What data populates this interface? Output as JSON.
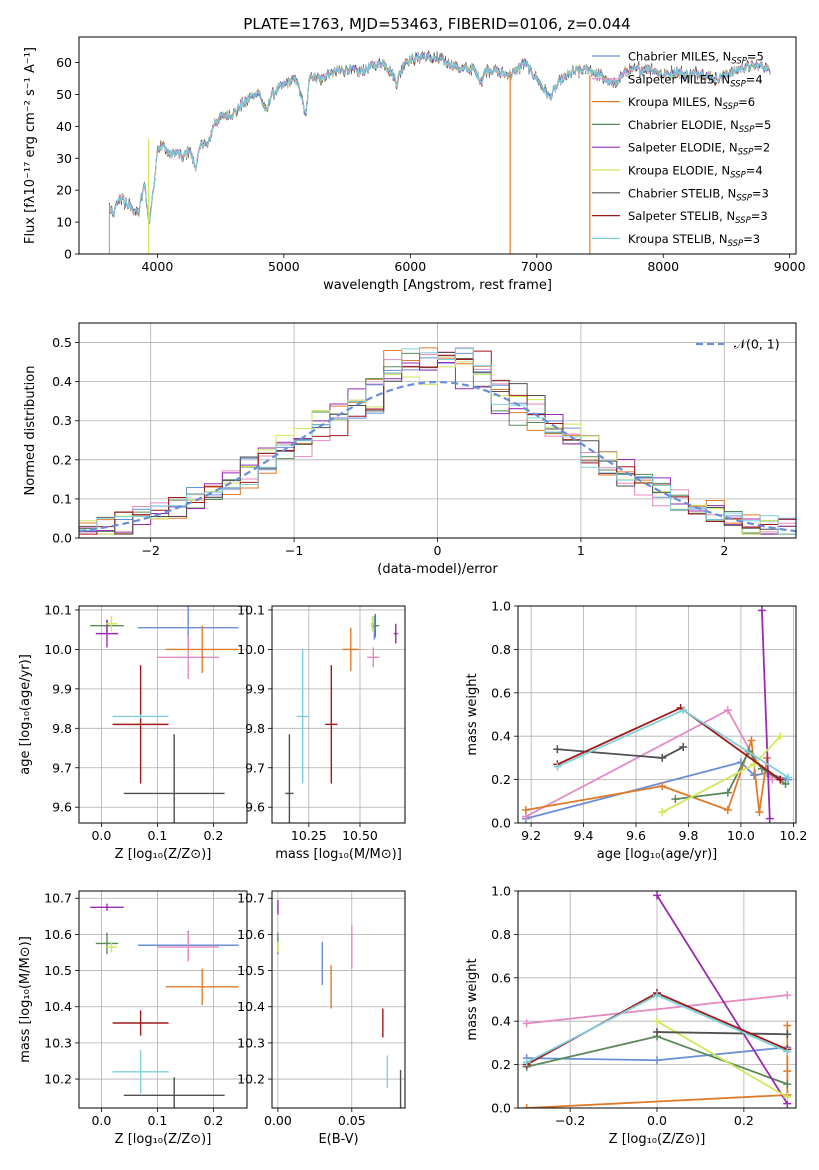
{
  "title": "PLATE=1763, MJD=53463, FIBERID=0106, z=0.044",
  "colors": {
    "chabrier_miles": "#6a8fd6",
    "salpeter_miles": "#e58ac2",
    "kroupa_miles": "#e07b2a",
    "chabrier_elodie": "#5a8a5a",
    "salpeter_elodie": "#9a2bb0",
    "kroupa_elodie": "#cfe85a",
    "chabrier_stelib": "#505050",
    "salpeter_stelib": "#a01818",
    "kroupa_stelib": "#80d0dc",
    "normal": "#6a8fd6"
  },
  "chart_data": [
    {
      "id": "spectrum",
      "type": "line",
      "xlabel": "wavelength [Angstrom, rest frame]",
      "ylabel": "Flux [fλ10⁻¹⁷ erg cm⁻² s⁻¹ A⁻¹]",
      "xlim": [
        3380,
        9050
      ],
      "ylim": [
        0,
        68
      ],
      "xticks": [
        4000,
        5000,
        6000,
        7000,
        8000,
        9000
      ],
      "yticks": [
        0,
        10,
        20,
        30,
        40,
        50,
        60
      ],
      "legend_position": "top-right",
      "legend": [
        {
          "main": "Chabrier MILES, N",
          "sub": "SSP",
          "tail": "=5",
          "color": "chabrier_miles"
        },
        {
          "main": "Salpeter MILES, N",
          "sub": "SSP",
          "tail": "=4",
          "color": "salpeter_miles"
        },
        {
          "main": "Kroupa MILES, N",
          "sub": "SSP",
          "tail": "=6",
          "color": "kroupa_miles"
        },
        {
          "main": "Chabrier ELODIE, N",
          "sub": "SSP",
          "tail": "=5",
          "color": "chabrier_elodie"
        },
        {
          "main": "Salpeter ELODIE, N",
          "sub": "SSP",
          "tail": "=2",
          "color": "salpeter_elodie"
        },
        {
          "main": "Kroupa ELODIE, N",
          "sub": "SSP",
          "tail": "=4",
          "color": "kroupa_elodie"
        },
        {
          "main": "Chabrier STELIB, N",
          "sub": "SSP",
          "tail": "=3",
          "color": "chabrier_stelib"
        },
        {
          "main": "Salpeter STELIB, N",
          "sub": "SSP",
          "tail": "=3",
          "color": "salpeter_stelib"
        },
        {
          "main": "Kroupa STELIB, N",
          "sub": "SSP",
          "tail": "=3",
          "color": "kroupa_stelib"
        }
      ],
      "data_x": [
        3620,
        3650,
        3700,
        3750,
        3800,
        3850,
        3900,
        3933,
        3968,
        4000,
        4050,
        4100,
        4150,
        4200,
        4250,
        4300,
        4350,
        4400,
        4450,
        4500,
        4600,
        4700,
        4800,
        4861,
        4900,
        5000,
        5100,
        5175,
        5200,
        5300,
        5400,
        5500,
        5600,
        5700,
        5800,
        5893,
        5950,
        6000,
        6100,
        6200,
        6300,
        6400,
        6500,
        6563,
        6600,
        6700,
        6800,
        6900,
        7000,
        7100,
        7200,
        7300,
        7400,
        7500,
        7600,
        7700,
        7800,
        7900,
        8000,
        8100,
        8200,
        8300,
        8400,
        8500,
        8600,
        8700,
        8800,
        8850
      ],
      "data_y": [
        15,
        12,
        18,
        16,
        14,
        13,
        22,
        9,
        20,
        33,
        34,
        31,
        32,
        30,
        33,
        27,
        35,
        34,
        41,
        43,
        44,
        48,
        51,
        44,
        50,
        53,
        55,
        43,
        56,
        55,
        57,
        58,
        57,
        59,
        60,
        54,
        60,
        61,
        62,
        61,
        60,
        58,
        58,
        54,
        58,
        57,
        56,
        60,
        55,
        49,
        55,
        57,
        58,
        56,
        53,
        57,
        58,
        58,
        56,
        57,
        56,
        57,
        55,
        56,
        58,
        59,
        59,
        57
      ],
      "dropouts": [
        {
          "x": 3930,
          "y1": 36,
          "y2": 0,
          "color": "kroupa_elodie"
        },
        {
          "x": 6790,
          "y1": 57,
          "y2": 0,
          "color": "kroupa_miles"
        },
        {
          "x": 7420,
          "y1": 56,
          "y2": 0,
          "color": "kroupa_miles"
        }
      ]
    },
    {
      "id": "residuals",
      "type": "histogram",
      "xlabel": "(data-model)/error",
      "ylabel": "Normed distribution",
      "xlim": [
        -2.5,
        2.5
      ],
      "ylim": [
        0,
        0.55
      ],
      "xticks": [
        -2,
        -1,
        0,
        1,
        2
      ],
      "yticks": [
        0,
        0.1,
        0.2,
        0.3,
        0.4,
        0.5
      ],
      "grid": true,
      "bin_width": 0.125,
      "legend_position": "top-right",
      "legend": "𝒩(0, 1)",
      "series_colors": [
        "chabrier_miles",
        "salpeter_miles",
        "kroupa_miles",
        "chabrier_elodie",
        "salpeter_elodie",
        "kroupa_elodie",
        "chabrier_stelib",
        "salpeter_stelib",
        "kroupa_stelib"
      ]
    },
    {
      "id": "age_z",
      "type": "errorbar",
      "xlabel": "Z [log₁₀(Z/Z⊙)]",
      "ylabel": "age  [log₁₀(age/yr)]",
      "xlim": [
        -0.04,
        0.26
      ],
      "ylim": [
        9.56,
        10.11
      ],
      "xticks": [
        0.0,
        0.1,
        0.2
      ],
      "yticks": [
        9.6,
        9.7,
        9.8,
        9.9,
        10.0,
        10.1
      ],
      "grid": true,
      "points": [
        {
          "x": 0.01,
          "y": 10.06,
          "xe": 0.03,
          "ye": 0.015,
          "color": "chabrier_elodie"
        },
        {
          "x": 0.01,
          "y": 10.04,
          "xe": 0.02,
          "ye": 0.035,
          "color": "salpeter_elodie"
        },
        {
          "x": 0.018,
          "y": 10.065,
          "xe": 0.01,
          "ye": 0.02,
          "color": "kroupa_elodie"
        },
        {
          "x": 0.155,
          "y": 10.055,
          "xe": 0.09,
          "ye": 0.06,
          "color": "chabrier_miles"
        },
        {
          "x": 0.155,
          "y": 9.98,
          "xe": 0.055,
          "ye": 0.055,
          "color": "salpeter_miles"
        },
        {
          "x": 0.18,
          "y": 10.0,
          "xe": 0.065,
          "ye": 0.06,
          "color": "kroupa_miles"
        },
        {
          "x": 0.07,
          "y": 9.81,
          "xe": 0.05,
          "ye": 0.15,
          "color": "salpeter_stelib"
        },
        {
          "x": 0.07,
          "y": 9.83,
          "xe": 0.05,
          "ye": 0.005,
          "color": "kroupa_stelib"
        },
        {
          "x": 0.13,
          "y": 9.635,
          "xe": 0.09,
          "ye": 0.15,
          "color": "chabrier_stelib"
        }
      ]
    },
    {
      "id": "age_mass",
      "type": "errorbar",
      "xlabel": "mass [log₁₀(M/M⊙)]",
      "ylabel": "",
      "xlim": [
        10.07,
        10.72
      ],
      "ylim": [
        9.56,
        10.11
      ],
      "xticks": [
        10.25,
        10.5
      ],
      "xticklabels": [
        "10.25",
        "10.50"
      ],
      "yticks": [
        9.6,
        9.7,
        9.8,
        9.9,
        10.0,
        10.1
      ],
      "grid": true,
      "points": [
        {
          "x": 10.575,
          "y": 10.06,
          "xe": 0.02,
          "ye": 0.03,
          "color": "chabrier_elodie"
        },
        {
          "x": 10.675,
          "y": 10.04,
          "xe": 0.01,
          "ye": 0.025,
          "color": "salpeter_elodie"
        },
        {
          "x": 10.56,
          "y": 10.065,
          "xe": 0.01,
          "ye": 0.02,
          "color": "kroupa_elodie"
        },
        {
          "x": 10.57,
          "y": 10.055,
          "xe": 0.005,
          "ye": 0.03,
          "color": "chabrier_miles"
        },
        {
          "x": 10.565,
          "y": 9.98,
          "xe": 0.03,
          "ye": 0.025,
          "color": "salpeter_miles"
        },
        {
          "x": 10.455,
          "y": 10.0,
          "xe": 0.04,
          "ye": 0.055,
          "color": "kroupa_miles"
        },
        {
          "x": 10.36,
          "y": 9.81,
          "xe": 0.03,
          "ye": 0.15,
          "color": "salpeter_stelib"
        },
        {
          "x": 10.22,
          "y": 9.83,
          "xe": 0.03,
          "ye": 0.17,
          "color": "kroupa_stelib"
        },
        {
          "x": 10.155,
          "y": 9.635,
          "xe": 0.02,
          "ye": 0.15,
          "color": "chabrier_stelib"
        }
      ]
    },
    {
      "id": "weight_age",
      "type": "line",
      "xlabel": "age  [log₁₀(age/yr)]",
      "ylabel": "mass weight",
      "xlim": [
        9.15,
        10.21
      ],
      "ylim": [
        0,
        1.0
      ],
      "xticks": [
        9.2,
        9.4,
        9.6,
        9.8,
        10.0,
        10.2
      ],
      "yticks": [
        0,
        0.2,
        0.4,
        0.6,
        0.8,
        1.0
      ],
      "grid": true,
      "series": [
        {
          "color": "chabrier_miles",
          "x": [
            9.18,
            10.0,
            10.05,
            10.1,
            10.18
          ],
          "y": [
            0.02,
            0.28,
            0.22,
            0.23,
            0.2
          ]
        },
        {
          "color": "salpeter_miles",
          "x": [
            9.18,
            9.95,
            10.05,
            10.12
          ],
          "y": [
            0.03,
            0.52,
            0.3,
            0.2
          ]
        },
        {
          "color": "kroupa_miles",
          "x": [
            9.18,
            9.7,
            9.95,
            10.04,
            10.07,
            10.1
          ],
          "y": [
            0.06,
            0.17,
            0.06,
            0.38,
            0.05,
            0.3
          ]
        },
        {
          "color": "chabrier_elodie",
          "x": [
            9.75,
            9.95,
            10.03,
            10.08,
            10.17
          ],
          "y": [
            0.11,
            0.14,
            0.33,
            0.25,
            0.18
          ]
        },
        {
          "color": "salpeter_elodie",
          "x": [
            10.08,
            10.11
          ],
          "y": [
            0.98,
            0.02
          ]
        },
        {
          "color": "kroupa_elodie",
          "x": [
            9.7,
            10.05,
            10.15
          ],
          "y": [
            0.05,
            0.27,
            0.4
          ]
        },
        {
          "color": "chabrier_stelib",
          "x": [
            9.3,
            9.7,
            9.78
          ],
          "y": [
            0.34,
            0.3,
            0.35
          ]
        },
        {
          "color": "salpeter_stelib",
          "x": [
            9.3,
            9.77,
            10.15
          ],
          "y": [
            0.27,
            0.53,
            0.2
          ]
        },
        {
          "color": "kroupa_stelib",
          "x": [
            9.3,
            9.78,
            10.18
          ],
          "y": [
            0.26,
            0.52,
            0.21
          ]
        }
      ]
    },
    {
      "id": "mass_z",
      "type": "errorbar",
      "xlabel": "Z [log₁₀(Z/Z⊙)]",
      "ylabel": "mass [log₁₀(M/M⊙)]",
      "xlim": [
        -0.04,
        0.26
      ],
      "ylim": [
        10.12,
        10.72
      ],
      "xticks": [
        0.0,
        0.1,
        0.2
      ],
      "yticks": [
        10.2,
        10.3,
        10.4,
        10.5,
        10.6,
        10.7
      ],
      "grid": true,
      "points": [
        {
          "x": 0.01,
          "y": 10.675,
          "xe": 0.03,
          "ye": 0.01,
          "color": "salpeter_elodie"
        },
        {
          "x": 0.01,
          "y": 10.575,
          "xe": 0.02,
          "ye": 0.03,
          "color": "chabrier_elodie"
        },
        {
          "x": 0.018,
          "y": 10.565,
          "xe": 0.01,
          "ye": 0.015,
          "color": "kroupa_elodie"
        },
        {
          "x": 0.155,
          "y": 10.57,
          "xe": 0.09,
          "ye": 0.04,
          "color": "chabrier_miles"
        },
        {
          "x": 0.155,
          "y": 10.565,
          "xe": 0.055,
          "ye": 0.04,
          "color": "salpeter_miles"
        },
        {
          "x": 0.18,
          "y": 10.455,
          "xe": 0.065,
          "ye": 0.05,
          "color": "kroupa_miles"
        },
        {
          "x": 0.07,
          "y": 10.355,
          "xe": 0.05,
          "ye": 0.035,
          "color": "salpeter_stelib"
        },
        {
          "x": 0.07,
          "y": 10.22,
          "xe": 0.05,
          "ye": 0.06,
          "color": "kroupa_stelib"
        },
        {
          "x": 0.13,
          "y": 10.155,
          "xe": 0.09,
          "ye": 0.05,
          "color": "chabrier_stelib"
        }
      ]
    },
    {
      "id": "mass_ebv",
      "type": "errorbar",
      "xlabel": "E(B-V)",
      "ylabel": "",
      "xlim": [
        -0.004,
        0.086
      ],
      "ylim": [
        10.12,
        10.72
      ],
      "xticks": [
        0.0,
        0.05
      ],
      "xticklabels": [
        "0.00",
        "0.05"
      ],
      "yticks": [
        10.2,
        10.3,
        10.4,
        10.5,
        10.6,
        10.7
      ],
      "grid": true,
      "points": [
        {
          "x": 0.0,
          "y": 10.675,
          "xe": 0,
          "ye": 0.02,
          "color": "salpeter_elodie"
        },
        {
          "x": 0.0,
          "y": 10.575,
          "xe": 0,
          "ye": 0.03,
          "color": "chabrier_elodie"
        },
        {
          "x": 0.0,
          "y": 10.565,
          "xe": 0,
          "ye": 0.015,
          "color": "kroupa_elodie"
        },
        {
          "x": 0.03,
          "y": 10.52,
          "xe": 0,
          "ye": 0.06,
          "color": "chabrier_miles"
        },
        {
          "x": 0.05,
          "y": 10.565,
          "xe": 0,
          "ye": 0.06,
          "color": "salpeter_miles"
        },
        {
          "x": 0.036,
          "y": 10.455,
          "xe": 0,
          "ye": 0.06,
          "color": "kroupa_miles"
        },
        {
          "x": 0.071,
          "y": 10.355,
          "xe": 0,
          "ye": 0.04,
          "color": "salpeter_stelib"
        },
        {
          "x": 0.074,
          "y": 10.22,
          "xe": 0,
          "ye": 0.045,
          "color": "kroupa_stelib"
        },
        {
          "x": 0.083,
          "y": 10.155,
          "xe": 0,
          "ye": 0.07,
          "color": "chabrier_stelib"
        }
      ]
    },
    {
      "id": "weight_z",
      "type": "line",
      "xlabel": "Z [log₁₀(Z/Z⊙)]",
      "ylabel": "mass weight",
      "xlim": [
        -0.32,
        0.32
      ],
      "ylim": [
        0,
        1.0
      ],
      "xticks": [
        -0.2,
        0.0,
        0.2
      ],
      "xticklabels": [
        "−0.2",
        "0.0",
        "0.2"
      ],
      "yticks": [
        0,
        0.2,
        0.4,
        0.6,
        0.8,
        1.0
      ],
      "grid": true,
      "series": [
        {
          "color": "chabrier_miles",
          "x": [
            -0.3,
            0.0,
            0.3
          ],
          "y": [
            0.23,
            0.22,
            0.28
          ]
        },
        {
          "color": "salpeter_miles",
          "x": [
            -0.3,
            0.3
          ],
          "y": [
            0.39,
            0.52
          ]
        },
        {
          "color": "kroupa_miles",
          "x": [
            -0.3,
            0.3,
            0.3,
            0.3
          ],
          "y": [
            0.0,
            0.06,
            0.38,
            0.17
          ]
        },
        {
          "color": "chabrier_elodie",
          "x": [
            -0.3,
            0.0,
            0.3
          ],
          "y": [
            0.19,
            0.33,
            0.11
          ]
        },
        {
          "color": "salpeter_elodie",
          "x": [
            0.0,
            0.3
          ],
          "y": [
            0.98,
            0.02
          ]
        },
        {
          "color": "kroupa_elodie",
          "x": [
            0.0,
            0.3
          ],
          "y": [
            0.4,
            0.05
          ]
        },
        {
          "color": "chabrier_stelib",
          "x": [
            0.0,
            0.3
          ],
          "y": [
            0.35,
            0.34
          ]
        },
        {
          "color": "salpeter_stelib",
          "x": [
            -0.3,
            0.0,
            0.3
          ],
          "y": [
            0.2,
            0.53,
            0.27
          ]
        },
        {
          "color": "kroupa_stelib",
          "x": [
            -0.3,
            0.0,
            0.3
          ],
          "y": [
            0.21,
            0.52,
            0.26
          ]
        }
      ]
    }
  ]
}
